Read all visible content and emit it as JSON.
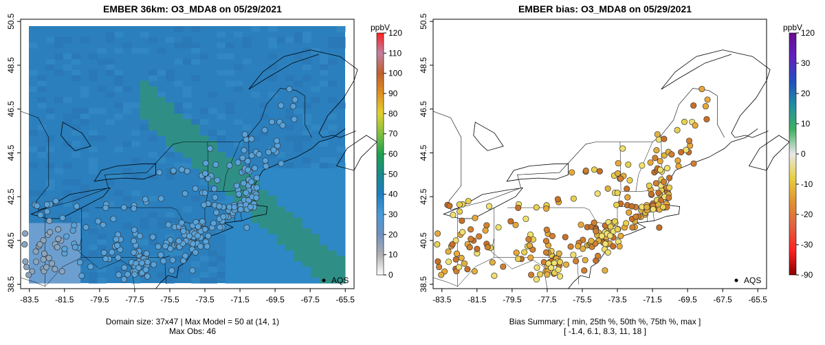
{
  "left_panel": {
    "title": "EMBER 36km: O3_MDA8 on 05/29/2021",
    "footer_line1": "Domain size: 37x47 | Max Model = 50 at (14, 1)",
    "footer_line2": "Max Obs: 46",
    "legend_label": "AQS",
    "colorbar": {
      "unit": "ppbV",
      "ticks": [
        0,
        10,
        20,
        30,
        40,
        50,
        60,
        70,
        80,
        90,
        100,
        110,
        120
      ],
      "stops": [
        "#ffffff",
        "#b0b0b0",
        "#7090c0",
        "#4a9ad6",
        "#1f7ec2",
        "#1c8a8a",
        "#20a050",
        "#80c040",
        "#e0d030",
        "#e09020",
        "#c06030",
        "#c080a0",
        "#ff2020"
      ]
    }
  },
  "right_panel": {
    "title": "EMBER bias: O3_MDA8 on 05/29/2021",
    "footer_line1": "Bias Summary: [ min, 25th %, 50th %, 75th %, max ]",
    "footer_line2": "[ -1.4,   6.1,   8.3,   11,   18 ]",
    "legend_label": "AQS",
    "colorbar": {
      "unit": "ppbV",
      "ticks": [
        "120",
        "30",
        "20",
        "10",
        "0",
        "-10",
        "-20",
        "-30",
        "-90"
      ],
      "stops": [
        "#8b0000",
        "#ff2020",
        "#e06040",
        "#e09030",
        "#e8d040",
        "#e8e8e8",
        "#40b060",
        "#2090a0",
        "#2050c0",
        "#6020c0",
        "#6a0d8f"
      ]
    }
  },
  "axes": {
    "x_ticks": [
      "-83.5",
      "-81.5",
      "-79.5",
      "-77.5",
      "-75.5",
      "-73.5",
      "-71.5",
      "-69.5",
      "-67.5",
      "-65.5"
    ],
    "y_ticks": [
      "38.5",
      "40.5",
      "42.5",
      "44.5",
      "46.5",
      "48.5",
      "50.5"
    ]
  },
  "map_data": {
    "model_field": {
      "background": "#2b7fbd",
      "ocean": "#2e88c6",
      "green_band": "#2f8f86",
      "low_region": "#6c9fd0"
    },
    "obs_color": "#58a3db",
    "obs_low_color": "#8aa5be",
    "bias_colors": [
      "#e8a838",
      "#e0b040",
      "#d08030",
      "#c87028",
      "#e8d050",
      "#f0e070"
    ]
  }
}
